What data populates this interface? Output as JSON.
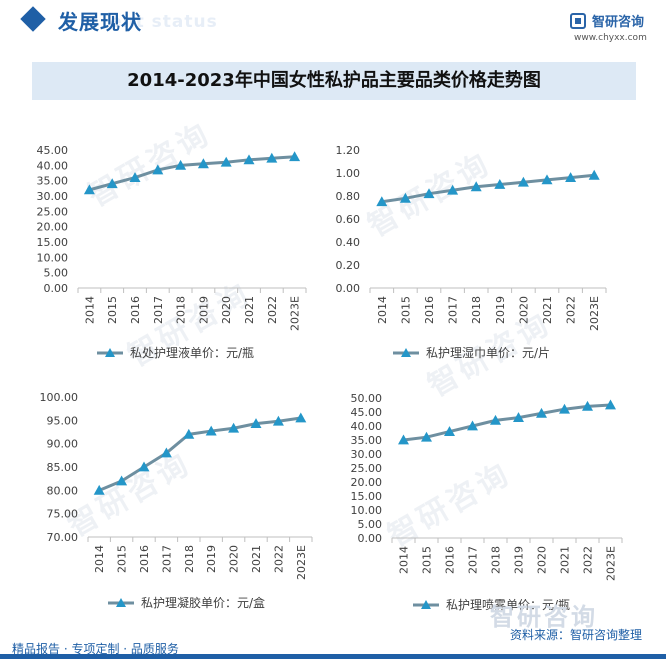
{
  "header": {
    "section_title": "发展现状",
    "ghost_text": "ent status"
  },
  "logo": {
    "name": "智研咨询",
    "url": "www.chyxx.com"
  },
  "main_title": "2014-2023年中国女性私护品主要品类价格走势图",
  "watermark": "智研咨询",
  "colors": {
    "line": "#6e8fa0",
    "marker": "#2496c8",
    "axis": "#bfbfbf",
    "brand": "#1f5fa6"
  },
  "chart_data": [
    {
      "type": "line",
      "categories": [
        "2014",
        "2015",
        "2016",
        "2017",
        "2018",
        "2019",
        "2020",
        "2021",
        "2022",
        "2023E"
      ],
      "series": [
        {
          "name": "私处护理液单价：元/瓶",
          "values": [
            32.0,
            34.0,
            36.0,
            38.5,
            40.0,
            40.5,
            41.0,
            41.8,
            42.3,
            42.8
          ]
        }
      ],
      "yticks": [
        "0.00",
        "5.00",
        "10.00",
        "15.00",
        "20.00",
        "25.00",
        "30.00",
        "35.00",
        "40.00",
        "45.00"
      ],
      "ylim": [
        0,
        45
      ]
    },
    {
      "type": "line",
      "categories": [
        "2014",
        "2015",
        "2016",
        "2017",
        "2018",
        "2019",
        "2020",
        "2021",
        "2022",
        "2023E"
      ],
      "series": [
        {
          "name": "私护理湿巾单价：元/片",
          "values": [
            0.75,
            0.78,
            0.82,
            0.85,
            0.88,
            0.9,
            0.92,
            0.94,
            0.96,
            0.98
          ]
        }
      ],
      "yticks": [
        "0.00",
        "0.20",
        "0.40",
        "0.60",
        "0.80",
        "1.00",
        "1.20"
      ],
      "ylim": [
        0,
        1.2
      ]
    },
    {
      "type": "line",
      "categories": [
        "2014",
        "2015",
        "2016",
        "2017",
        "2018",
        "2019",
        "2020",
        "2021",
        "2022",
        "2023E"
      ],
      "series": [
        {
          "name": "私护理凝胶单价：元/盒",
          "values": [
            80.0,
            82.0,
            85.0,
            88.0,
            92.0,
            92.7,
            93.3,
            94.3,
            94.8,
            95.5
          ]
        }
      ],
      "yticks": [
        "70.00",
        "75.00",
        "80.00",
        "85.00",
        "90.00",
        "95.00",
        "100.00"
      ],
      "ylim": [
        70,
        100
      ]
    },
    {
      "type": "line",
      "categories": [
        "2014",
        "2015",
        "2016",
        "2017",
        "2018",
        "2019",
        "2020",
        "2021",
        "2022",
        "2023E"
      ],
      "series": [
        {
          "name": "私护理喷雾单价：元/瓶",
          "values": [
            35.0,
            36.0,
            38.0,
            40.0,
            42.0,
            43.0,
            44.5,
            46.0,
            47.0,
            47.5
          ]
        }
      ],
      "yticks": [
        "0.00",
        "5.00",
        "10.00",
        "15.00",
        "20.00",
        "25.00",
        "30.00",
        "35.00",
        "40.00",
        "45.00",
        "50.00"
      ],
      "ylim": [
        0,
        50
      ]
    }
  ],
  "footer": {
    "left": "精品报告 · 专项定制 · 品质服务",
    "right": "资料来源：智研咨询整理"
  }
}
